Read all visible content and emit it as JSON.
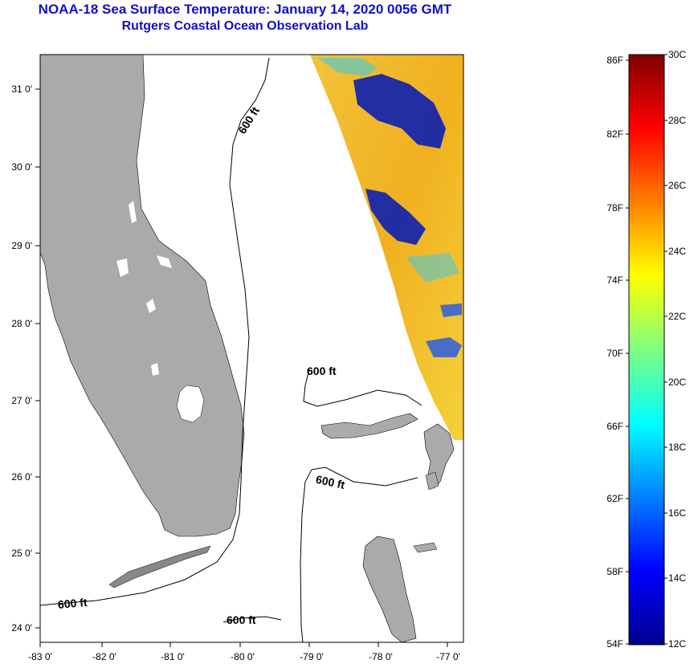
{
  "title": {
    "line1": "NOAA-18 Sea Surface Temperature:  January 14, 2020 0056 GMT",
    "line2": "Rutgers Coastal Ocean Observation Lab"
  },
  "map": {
    "lon_ticks": [
      "-83 0'",
      "-82 0'",
      "-81 0'",
      "-80 0'",
      "-79 0'",
      "-78 0'",
      "-77 0'"
    ],
    "lat_ticks": [
      "31 0'",
      "30 0'",
      "29 0'",
      "28 0'",
      "27 0'",
      "26 0'",
      "25 0'",
      "24 0'"
    ],
    "contour_labels": [
      "600 ft",
      "600 ft",
      "600 ft",
      "600 ft",
      "600 ft"
    ],
    "colors": {
      "land": "#aaaaaa",
      "ocean_no_data": "#ffffff",
      "coast": "#000000"
    }
  },
  "colorbar": {
    "fahrenheit_labels": [
      "86F",
      "82F",
      "78F",
      "74F",
      "70F",
      "66F",
      "62F",
      "58F",
      "54F"
    ],
    "celsius_labels": [
      "30C",
      "28C",
      "26C",
      "24C",
      "22C",
      "20C",
      "18C",
      "16C",
      "14C",
      "12C"
    ],
    "range_c": [
      12,
      30
    ],
    "range_f": [
      54,
      86
    ],
    "colormap": "jet"
  }
}
